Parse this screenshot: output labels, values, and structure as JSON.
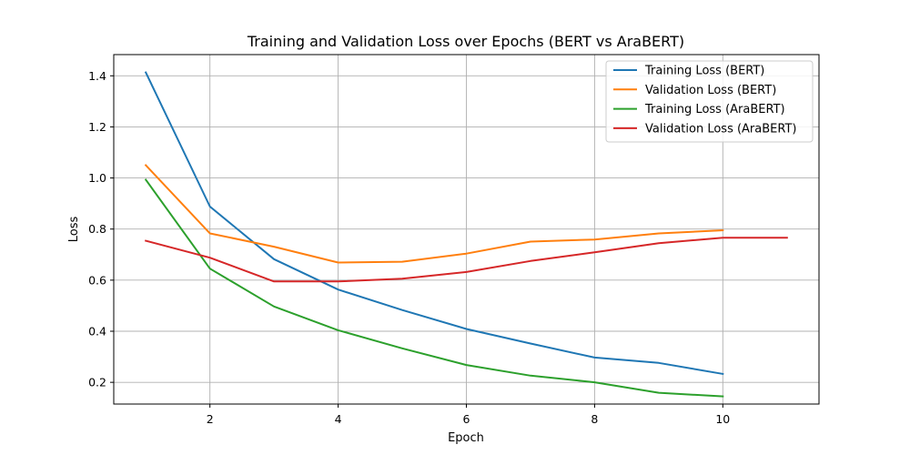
{
  "chart_data": {
    "type": "line",
    "title": "Training and Validation Loss over Epochs (BERT vs AraBERT)",
    "xlabel": "Epoch",
    "ylabel": "Loss",
    "xlim": [
      0.5,
      11.5
    ],
    "ylim": [
      0.115,
      1.483
    ],
    "xticks": [
      2,
      4,
      6,
      8,
      10
    ],
    "yticks": [
      0.2,
      0.4,
      0.6,
      0.8,
      1.0,
      1.2,
      1.4
    ],
    "xtick_labels": [
      "2",
      "4",
      "6",
      "8",
      "10"
    ],
    "ytick_labels": [
      "0.2",
      "0.4",
      "0.6",
      "0.8",
      "1.0",
      "1.2",
      "1.4"
    ],
    "grid": true,
    "legend_position": "top-right",
    "series": [
      {
        "name": "Training Loss (BERT)",
        "color": "#1f77b4",
        "x": [
          1,
          2,
          3,
          4,
          5,
          6,
          7,
          8,
          9,
          10
        ],
        "values": [
          1.413,
          0.888,
          0.682,
          0.563,
          0.483,
          0.409,
          0.352,
          0.297,
          0.276,
          0.233
        ]
      },
      {
        "name": "Validation Loss (BERT)",
        "color": "#ff7f0e",
        "x": [
          1,
          2,
          3,
          4,
          5,
          6,
          7,
          8,
          9,
          10
        ],
        "values": [
          1.05,
          0.783,
          0.731,
          0.669,
          0.672,
          0.704,
          0.751,
          0.759,
          0.783,
          0.795
        ]
      },
      {
        "name": "Training Loss (AraBERT)",
        "color": "#2ca02c",
        "x": [
          1,
          2,
          3,
          4,
          5,
          6,
          7,
          8,
          9,
          10
        ],
        "values": [
          0.993,
          0.645,
          0.497,
          0.404,
          0.333,
          0.268,
          0.226,
          0.2,
          0.159,
          0.145
        ]
      },
      {
        "name": "Validation Loss (AraBERT)",
        "color": "#d62728",
        "x": [
          1,
          2,
          3,
          4,
          5,
          6,
          7,
          8,
          9,
          10,
          11
        ],
        "values": [
          0.754,
          0.688,
          0.595,
          0.595,
          0.606,
          0.632,
          0.675,
          0.709,
          0.745,
          0.766,
          0.766
        ]
      }
    ]
  }
}
